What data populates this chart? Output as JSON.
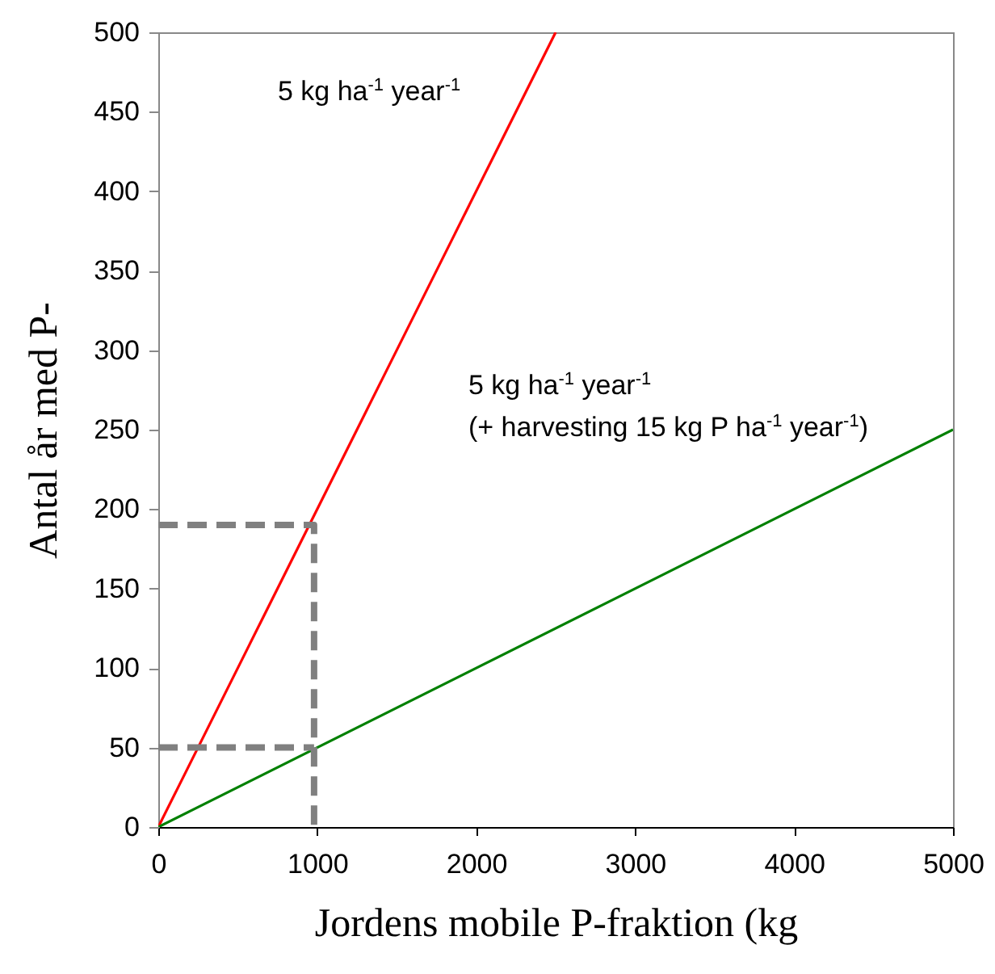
{
  "chart_data": {
    "type": "line",
    "xlabel": "Jordens mobile P-fraktion (kg",
    "ylabel": "Antal år med P-",
    "xlim": [
      0,
      5000
    ],
    "xticks": [
      0,
      1000,
      2000,
      3000,
      4000,
      5000
    ],
    "ylim": [
      0,
      500
    ],
    "yticks": [
      0,
      50,
      100,
      150,
      200,
      250,
      300,
      350,
      400,
      450,
      500
    ],
    "series": [
      {
        "color": "#ff0000",
        "x": [
          0,
          2500
        ],
        "values": [
          0,
          500
        ],
        "line_style": "solid"
      },
      {
        "color": "#008000",
        "x": [
          0,
          5000
        ],
        "values": [
          0,
          250
        ],
        "line_style": "solid"
      },
      {
        "color": "#808080",
        "x": [
          0,
          980,
          980
        ],
        "values": [
          190,
          190,
          0
        ],
        "line_style": "dashed"
      },
      {
        "color": "#808080",
        "x": [
          0,
          980
        ],
        "values": [
          50,
          50
        ],
        "line_style": "dashed"
      }
    ],
    "annotations": [
      "5 kg ha$^{-1}$ year$^{-1}$",
      "5 kg ha$^{-1}$ year$^{-1}$",
      "(+ harvesting 15 kg P ha$^{-1}$ year$^{-1}$)"
    ]
  }
}
